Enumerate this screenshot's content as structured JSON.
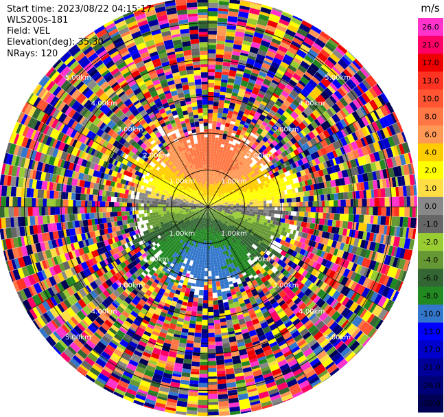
{
  "header": {
    "start_time": "Start time: 2023/08/22 04:15:17",
    "instrument": "WLS200s-181",
    "field": "Field: VEL",
    "elevation": "Elevation(deg): 35.30",
    "nrays": "NRays: 120"
  },
  "chart_data": {
    "type": "heatmap",
    "projection": "polar-ppi",
    "field": "VEL",
    "units": "m/s",
    "range_rings_km": [
      1,
      2,
      3,
      4,
      5
    ],
    "range_ring_labels": [
      "1.00km",
      "2.00km",
      "3.00km",
      "4.00km",
      "5.00km"
    ],
    "max_range_km": 5.7,
    "n_rays": 120,
    "valid_range_km": 2.4,
    "colorbar": {
      "ticks": [
        "26.0",
        "21.0",
        "17.0",
        "13.0",
        "10.0",
        "8.0",
        "6.0",
        "4.0",
        "2.0",
        "1.0",
        "0.0",
        "-1.0",
        "-2.0",
        "-4.0",
        "-6.0",
        "-8.0",
        "-10.0",
        "-13.0",
        "-17.0",
        "-21.0",
        "-26.0",
        "-30.0"
      ],
      "colors": [
        "#ff33cc",
        "#ff0066",
        "#ee0000",
        "#ff3322",
        "#ff5533",
        "#ff7744",
        "#ff9955",
        "#ffcc00",
        "#ffff00",
        "#ffdd44",
        "#888888",
        "#666666",
        "#99cc33",
        "#669933",
        "#336633",
        "#228822",
        "#3377cc",
        "#0000ff",
        "#0000cc",
        "#000099",
        "#000077",
        "#000055"
      ]
    }
  }
}
